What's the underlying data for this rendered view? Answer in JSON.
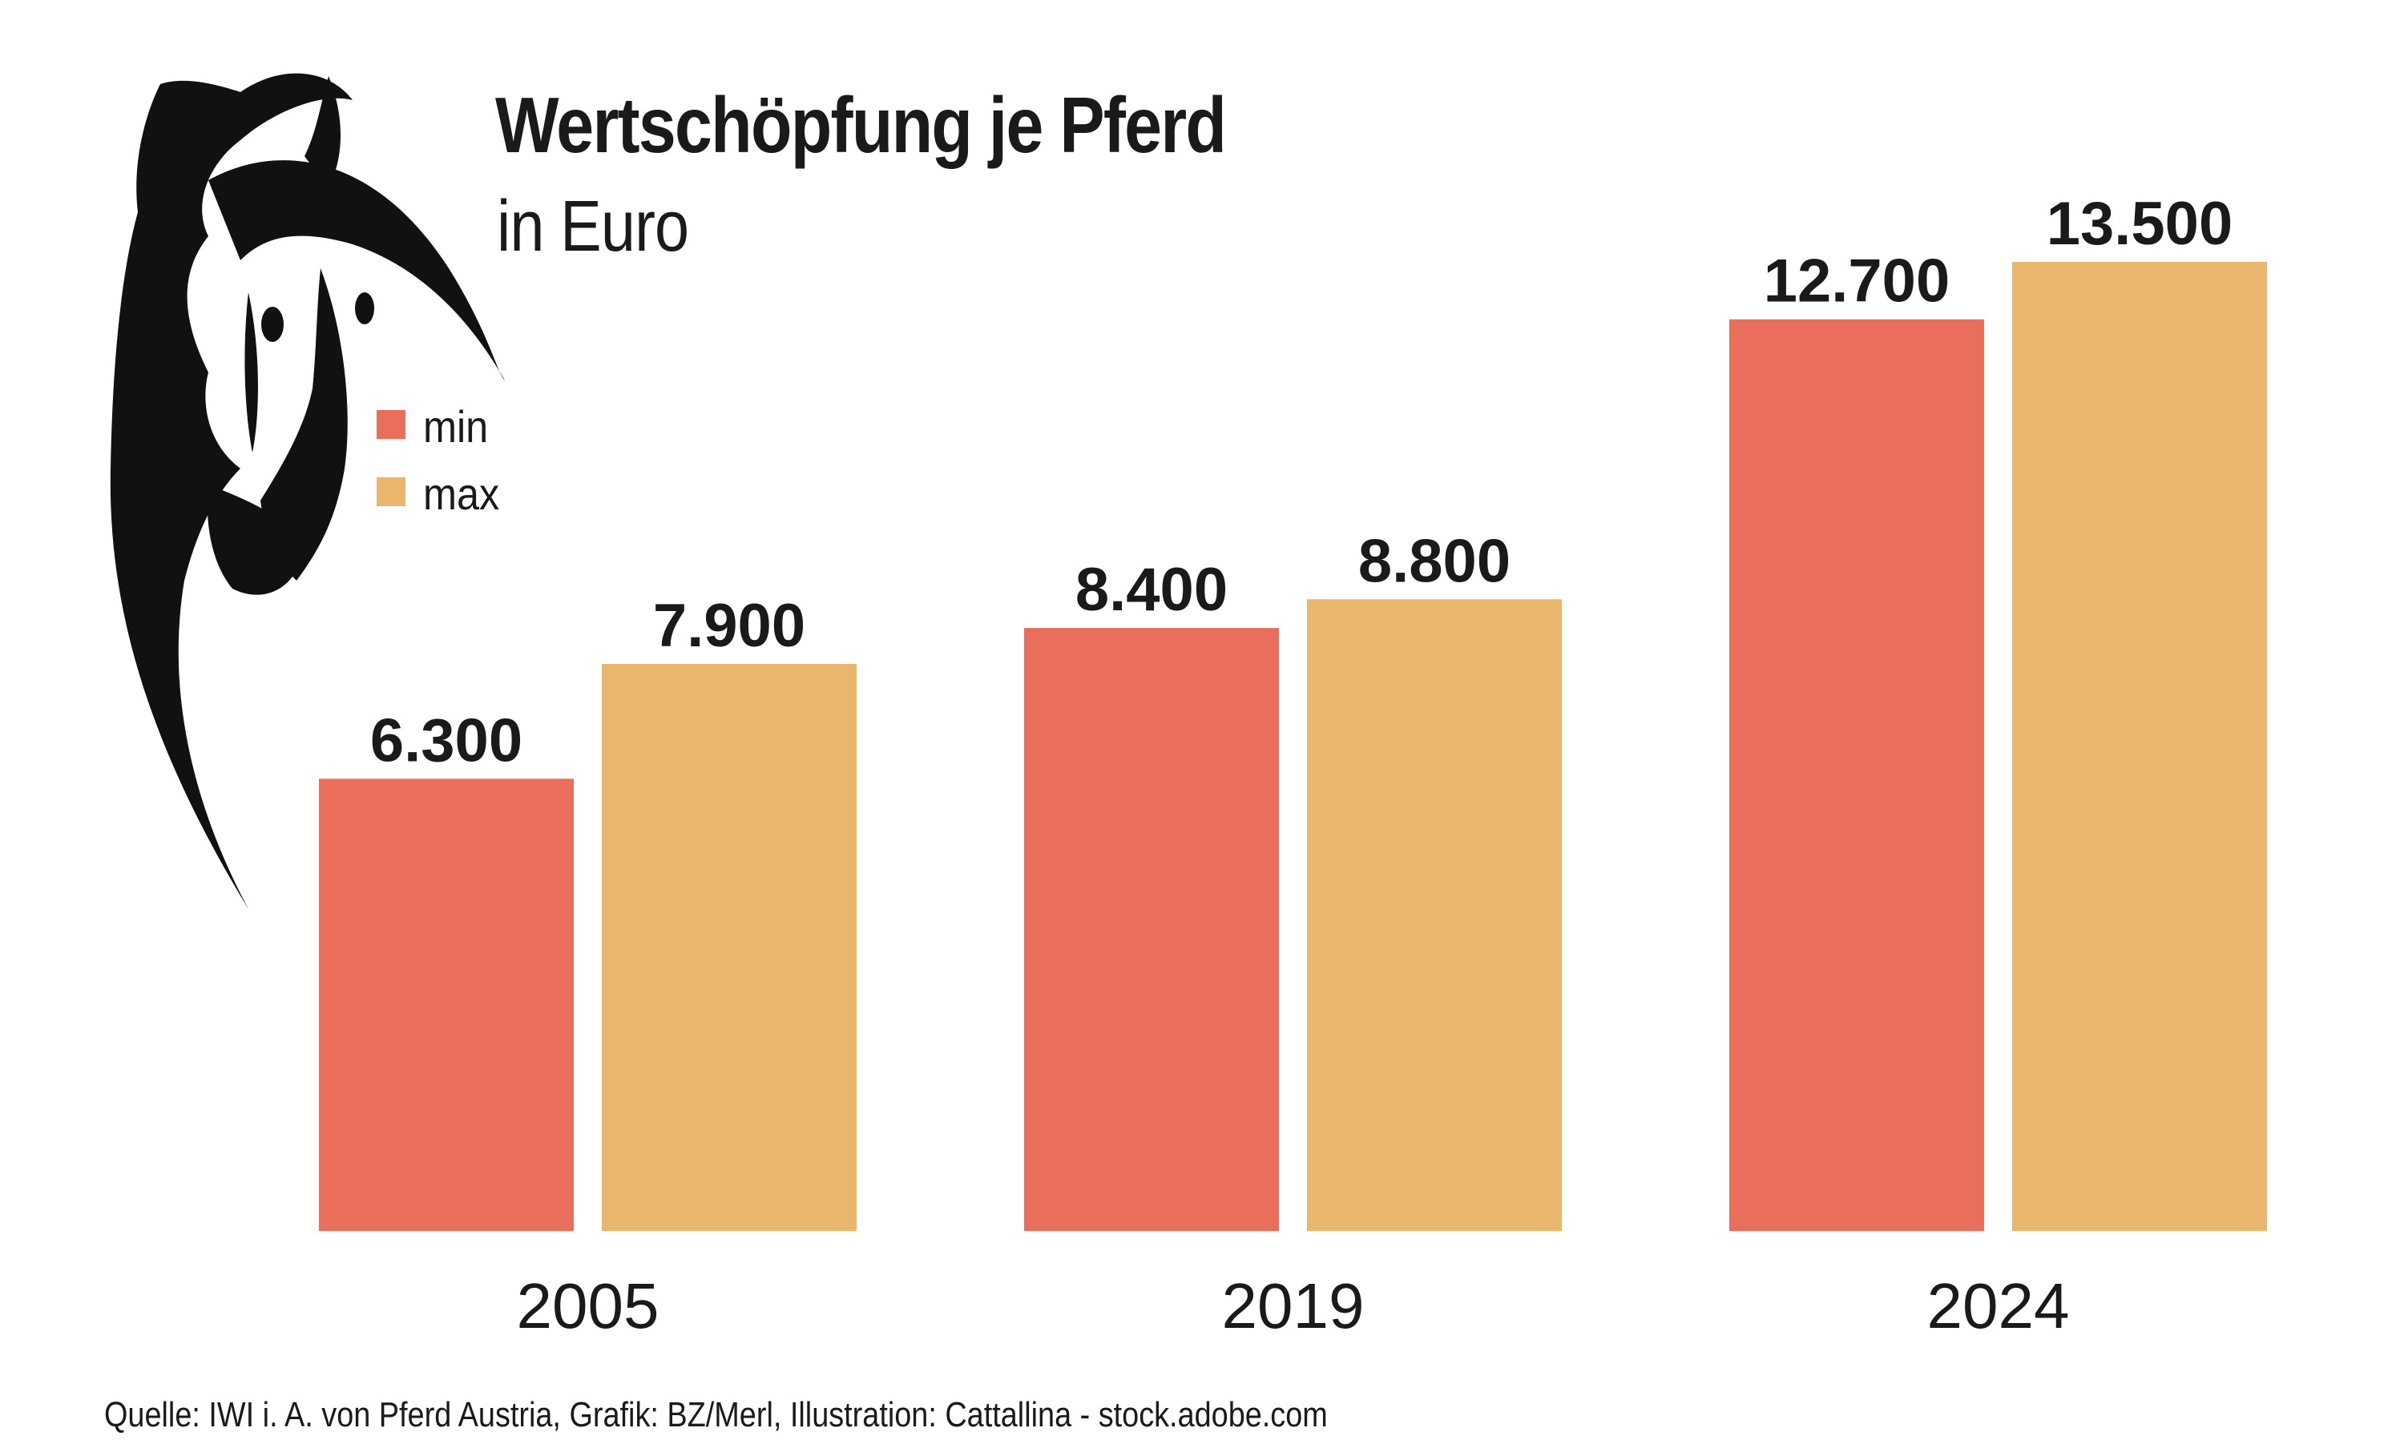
{
  "title": "Wertschöpfung je Pferd",
  "subtitle": "in Euro",
  "legend": [
    {
      "label": "min",
      "color": "#E96E5B"
    },
    {
      "label": "max",
      "color": "#EAB66E"
    }
  ],
  "source": "Quelle: IWI i. A. von Pferd Austria, Grafik: BZ/Merl, Illustration: Cattallina - stock.adobe.com",
  "chart_data": {
    "type": "bar",
    "categories": [
      "2005",
      "2019",
      "2024"
    ],
    "series": [
      {
        "name": "min",
        "values": [
          6300,
          8400,
          12700
        ],
        "labels": [
          "6.300",
          "8.400",
          "12.700"
        ],
        "color": "#E96E5B"
      },
      {
        "name": "max",
        "values": [
          7900,
          8800,
          13500
        ],
        "labels": [
          "7.900",
          "8.800",
          "13.500"
        ],
        "color": "#EAB66E"
      }
    ],
    "title": "Wertschöpfung je Pferd",
    "subtitle": "in Euro",
    "xlabel": "",
    "ylabel": "",
    "ylim": [
      0,
      13500
    ],
    "grid": false,
    "legend": "top-left"
  }
}
